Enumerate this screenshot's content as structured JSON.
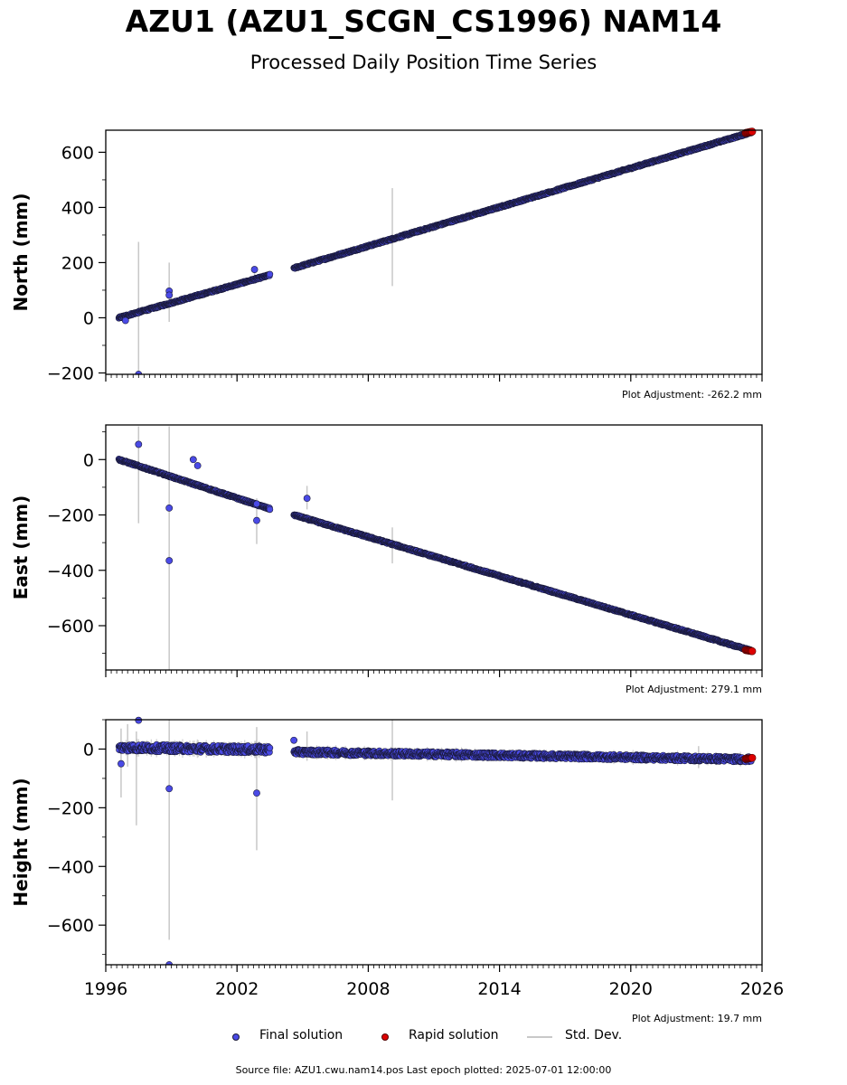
{
  "header": {
    "title": "AZU1 (AZU1_SCGN_CS1996) NAM14",
    "subtitle": "Processed Daily Position Time Series"
  },
  "legend": {
    "final_label": "Final solution",
    "rapid_label": "Rapid solution",
    "stddev_label": "Std. Dev."
  },
  "footer": {
    "text": "Source file: AZU1.cwu.nam14.pos  Last epoch plotted: 2025-07-01 12:00:00"
  },
  "colors": {
    "final": "#4a4ae6",
    "final_edge": "#1a1a3a",
    "rapid": "#dd0000",
    "stddev": "#c8c8c8"
  },
  "chart_data": [
    {
      "type": "scatter",
      "ylabel": "North (mm)",
      "ylim": [
        -205,
        680
      ],
      "xlim": [
        1996,
        2026
      ],
      "yticks": [
        -200,
        0,
        200,
        400,
        600
      ],
      "xticks": [
        1996,
        2002,
        2008,
        2014,
        2020,
        2026
      ],
      "show_xtick_labels": false,
      "adjustment_label": "Plot Adjustment: -262.2 mm",
      "trend": [
        {
          "x": [
            1996.6,
            2003.5
          ],
          "y": [
            0,
            155
          ],
          "noise": 3
        },
        {
          "x": [
            2004.6,
            2025.5
          ],
          "y": [
            180,
            672
          ],
          "noise": 3
        }
      ],
      "outliers": [
        [
          1997.5,
          -205
        ],
        [
          1998.9,
          97
        ],
        [
          1998.9,
          82
        ],
        [
          2002.8,
          175
        ],
        [
          1996.9,
          -10
        ]
      ],
      "stddev_bars": [
        [
          1997.5,
          -205,
          275
        ],
        [
          1998.9,
          -15,
          200
        ],
        [
          2009.1,
          115,
          470
        ],
        [
          2002.8,
          130,
          185
        ]
      ],
      "rapid": {
        "x": [
          2025.25,
          2025.55
        ],
        "y": [
          670,
          675
        ]
      }
    },
    {
      "type": "scatter",
      "ylabel": "East (mm)",
      "ylim": [
        -760,
        125
      ],
      "xlim": [
        1996,
        2026
      ],
      "yticks": [
        -600,
        -400,
        -200,
        0
      ],
      "xticks": [
        1996,
        2002,
        2008,
        2014,
        2020,
        2026
      ],
      "show_xtick_labels": false,
      "adjustment_label": "Plot Adjustment: 279.1 mm",
      "trend": [
        {
          "x": [
            1996.6,
            2003.5
          ],
          "y": [
            0,
            -178
          ],
          "noise": 3
        },
        {
          "x": [
            2004.6,
            2025.5
          ],
          "y": [
            -200,
            -690
          ],
          "noise": 3
        }
      ],
      "outliers": [
        [
          1997.5,
          55
        ],
        [
          1998.9,
          -175
        ],
        [
          1998.9,
          -365
        ],
        [
          2000.0,
          0
        ],
        [
          2000.2,
          -22
        ],
        [
          2005.2,
          -140
        ],
        [
          2002.9,
          -220
        ],
        [
          2002.9,
          -160
        ]
      ],
      "stddev_bars": [
        [
          1997.5,
          -230,
          120
        ],
        [
          1998.9,
          -760,
          120
        ],
        [
          2002.9,
          -305,
          -140
        ],
        [
          2005.2,
          -180,
          -95
        ],
        [
          2009.1,
          -375,
          -245
        ]
      ],
      "rapid": {
        "x": [
          2025.25,
          2025.55
        ],
        "y": [
          -688,
          -692
        ]
      }
    },
    {
      "type": "scatter",
      "ylabel": "Height (mm)",
      "ylim": [
        -735,
        100
      ],
      "xlim": [
        1996,
        2026
      ],
      "yticks": [
        -600,
        -400,
        -200,
        0
      ],
      "xticks": [
        1996,
        2002,
        2008,
        2014,
        2020,
        2026
      ],
      "xtick_labels": [
        "1996",
        "2002",
        "2008",
        "2014",
        "2020",
        "2026"
      ],
      "show_xtick_labels": true,
      "adjustment_label": "Plot Adjustment: 19.7 mm",
      "trend": [
        {
          "x": [
            1996.6,
            2003.5
          ],
          "y": [
            5,
            -2
          ],
          "noise": 12
        },
        {
          "x": [
            2004.6,
            2025.5
          ],
          "y": [
            -10,
            -35
          ],
          "noise": 9
        }
      ],
      "outliers": [
        [
          1996.7,
          -50
        ],
        [
          1997.5,
          98
        ],
        [
          1998.9,
          -135
        ],
        [
          1998.9,
          -735
        ],
        [
          2002.9,
          -150
        ],
        [
          2004.6,
          30
        ]
      ],
      "stddev_bars": [
        [
          1996.7,
          -165,
          70
        ],
        [
          1997.0,
          -60,
          85
        ],
        [
          1997.4,
          -260,
          60
        ],
        [
          1998.9,
          -650,
          100
        ],
        [
          2002.9,
          -345,
          75
        ],
        [
          2005.2,
          -40,
          60
        ],
        [
          2009.1,
          -175,
          100
        ],
        [
          2023.1,
          -65,
          10
        ]
      ],
      "rapid": {
        "x": [
          2025.25,
          2025.55
        ],
        "y": [
          -33,
          -30
        ]
      }
    }
  ]
}
